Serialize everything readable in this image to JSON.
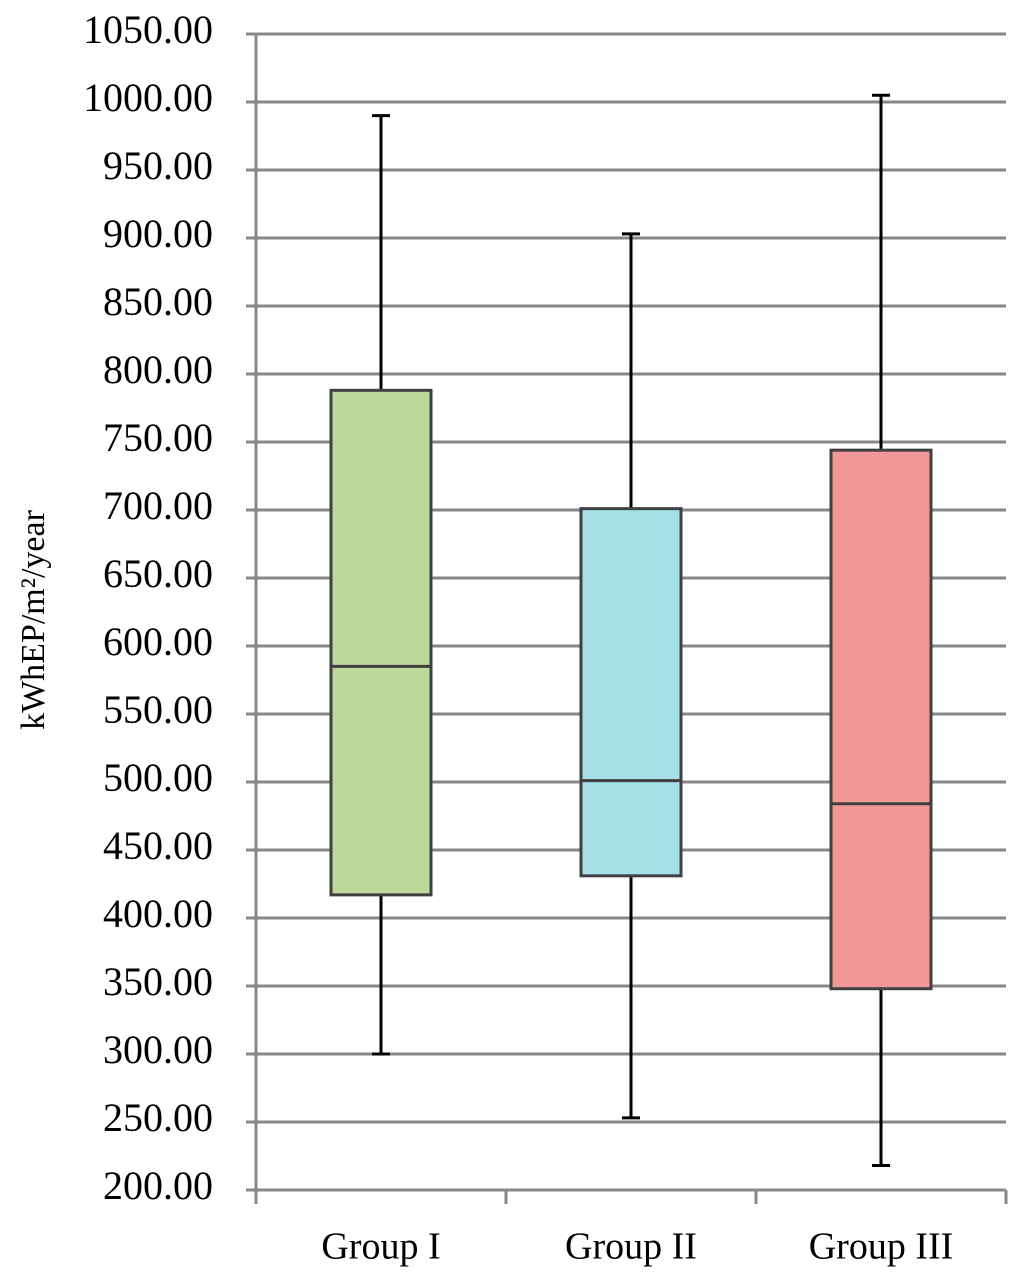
{
  "chart_data": {
    "type": "box",
    "y_label": "kWhEP/m²/year",
    "categories": [
      "Group I",
      "Group II",
      "Group III"
    ],
    "min": [
      300,
      253,
      218
    ],
    "q1": [
      417,
      431,
      348
    ],
    "median": [
      585,
      501,
      484
    ],
    "q3": [
      788,
      701,
      744
    ],
    "max": [
      990,
      903,
      1005
    ],
    "colors": [
      "#bdd899",
      "#a6dfe8",
      "#f09896"
    ],
    "ylim": [
      200,
      1050
    ],
    "yticks": [
      {
        "value": 200,
        "label": "200.00"
      },
      {
        "value": 250,
        "label": "250.00"
      },
      {
        "value": 300,
        "label": "300.00"
      },
      {
        "value": 350,
        "label": "350.00"
      },
      {
        "value": 400,
        "label": "400.00"
      },
      {
        "value": 450,
        "label": "450.00"
      },
      {
        "value": 500,
        "label": "500.00"
      },
      {
        "value": 550,
        "label": "550.00"
      },
      {
        "value": 600,
        "label": "600.00"
      },
      {
        "value": 650,
        "label": "650.00"
      },
      {
        "value": 700,
        "label": "700.00"
      },
      {
        "value": 750,
        "label": "750.00"
      },
      {
        "value": 800,
        "label": "800.00"
      },
      {
        "value": 850,
        "label": "850.00"
      },
      {
        "value": 900,
        "label": "900.00"
      },
      {
        "value": 950,
        "label": "950.00"
      },
      {
        "value": 1000,
        "label": "1000.00"
      },
      {
        "value": 1050,
        "label": "1050.00"
      }
    ],
    "grid": true
  }
}
